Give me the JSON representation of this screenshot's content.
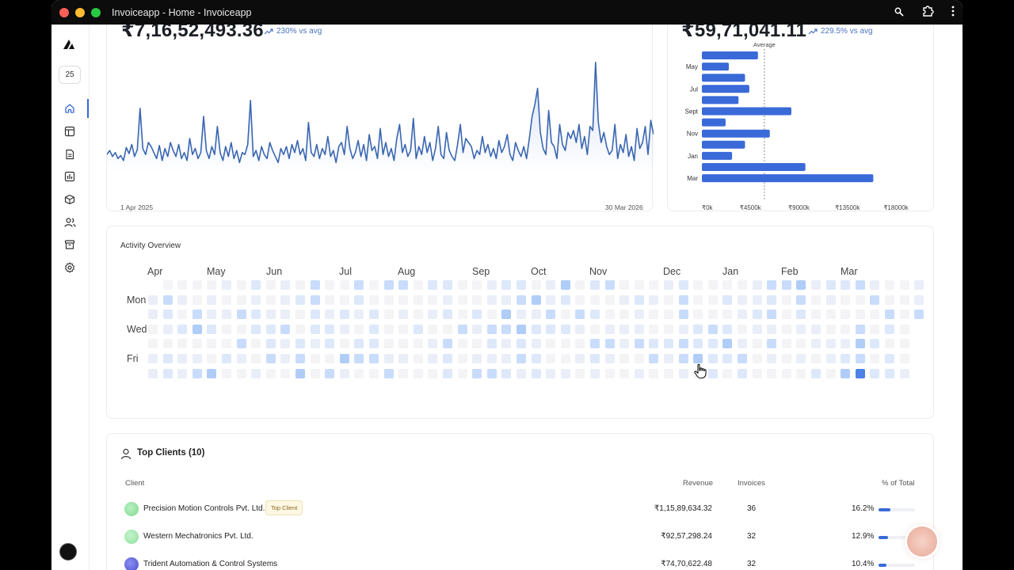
{
  "window": {
    "title": "Invoiceapp - Home - Invoiceapp",
    "traffic_colors": [
      "#ff5f57",
      "#febc2e",
      "#28c840"
    ]
  },
  "sidebar": {
    "badge": "25",
    "items": [
      {
        "name": "home-icon"
      },
      {
        "name": "table-icon"
      },
      {
        "name": "document-icon"
      },
      {
        "name": "chart-icon"
      },
      {
        "name": "box-icon"
      },
      {
        "name": "users-icon"
      },
      {
        "name": "archive-icon"
      },
      {
        "name": "settings-icon"
      }
    ]
  },
  "revenue_card": {
    "value": "₹7,16,52,493.36",
    "trend": "230% vs avg",
    "start_label": "1 Apr 2025",
    "end_label": "30 Mar 2026"
  },
  "monthly_card": {
    "value": "₹59,71,041.11",
    "trend": "229.5% vs avg",
    "average_label": "Average"
  },
  "activity": {
    "title": "Activity Overview",
    "months": [
      "Apr",
      "May",
      "Jun",
      "Jul",
      "Aug",
      "Sep",
      "Oct",
      "Nov",
      "Dec",
      "Jan",
      "Feb",
      "Mar"
    ],
    "days": [
      "Mon",
      "Wed",
      "Fri"
    ]
  },
  "clients": {
    "title": "Top Clients (10)",
    "headers": {
      "client": "Client",
      "revenue": "Revenue",
      "invoices": "Invoices",
      "pct": "% of Total"
    },
    "rows": [
      {
        "name": "Precision Motion Controls Pvt. Ltd.",
        "tag": "Top Client",
        "revenue": "₹1,15,89,634.32",
        "invoices": "36",
        "pct": "16.2%",
        "share": 0.162,
        "color": "#7fd88e"
      },
      {
        "name": "Western Mechatronics Pvt. Ltd.",
        "tag": "",
        "revenue": "₹92,57,298.24",
        "invoices": "32",
        "pct": "12.9%",
        "share": 0.129,
        "color": "#8ee09a"
      },
      {
        "name": "Trident Automation & Control Systems",
        "tag": "",
        "revenue": "₹74,70,622.48",
        "invoices": "32",
        "pct": "10.4%",
        "share": 0.104,
        "color": "#4a4fd0"
      }
    ]
  },
  "chart_data": [
    {
      "type": "line",
      "x_start": "1 Apr 2025",
      "x_end": "30 Mar 2026",
      "values": [
        18,
        22,
        16,
        20,
        14,
        17,
        12,
        25,
        19,
        28,
        16,
        23,
        64,
        24,
        18,
        30,
        26,
        20,
        14,
        27,
        12,
        24,
        16,
        30,
        22,
        16,
        28,
        14,
        20,
        12,
        34,
        18,
        24,
        14,
        20,
        56,
        22,
        14,
        26,
        18,
        46,
        20,
        12,
        26,
        16,
        30,
        14,
        22,
        10,
        20,
        18,
        28,
        72,
        16,
        22,
        12,
        26,
        18,
        14,
        30,
        22,
        16,
        10,
        24,
        18,
        26,
        14,
        28,
        20,
        32,
        18,
        24,
        12,
        50,
        20,
        16,
        28,
        14,
        24,
        18,
        36,
        16,
        22,
        10,
        26,
        30,
        18,
        46,
        24,
        14,
        20,
        32,
        16,
        28,
        12,
        38,
        22,
        26,
        14,
        44,
        18,
        30,
        16,
        24,
        12,
        34,
        48,
        20,
        28,
        16,
        22,
        54,
        14,
        26,
        18,
        36,
        20,
        30,
        12,
        24,
        46,
        18,
        14,
        40,
        22,
        16,
        12,
        28,
        48,
        20,
        34,
        30,
        26,
        14,
        22,
        18,
        36,
        20,
        28,
        16,
        24,
        14,
        32,
        20,
        26,
        38,
        18,
        12,
        30,
        22,
        16,
        26,
        14,
        34,
        56,
        68,
        84,
        40,
        24,
        18,
        62,
        30,
        26,
        14,
        48,
        28,
        22,
        40,
        34,
        42,
        30,
        48,
        24,
        36,
        18,
        46,
        42,
        110,
        50,
        30,
        40,
        26,
        18,
        22,
        48,
        14,
        28,
        20,
        38,
        16,
        26,
        12,
        44,
        24,
        30,
        46,
        18,
        52,
        38
      ],
      "ylim": [
        0,
        120
      ]
    },
    {
      "type": "bar",
      "orientation": "horizontal",
      "categories": [
        "Apr",
        "May",
        "Jun",
        "Jul",
        "Aug",
        "Sept",
        "Oct",
        "Nov",
        "Dec",
        "Jan",
        "Feb",
        "Mar"
      ],
      "tick_categories": [
        "May",
        "Jul",
        "Sept",
        "Nov",
        "Jan",
        "Mar"
      ],
      "values": [
        5200,
        2500,
        4000,
        4400,
        3400,
        8300,
        2200,
        6300,
        4000,
        2800,
        9600,
        15900
      ],
      "xlim": [
        0,
        18000
      ],
      "xticks": [
        "₹0k",
        "₹4500k",
        "₹9000k",
        "₹13500k",
        "₹18000k"
      ],
      "average": 5800,
      "color": "#3a6ad8"
    }
  ]
}
